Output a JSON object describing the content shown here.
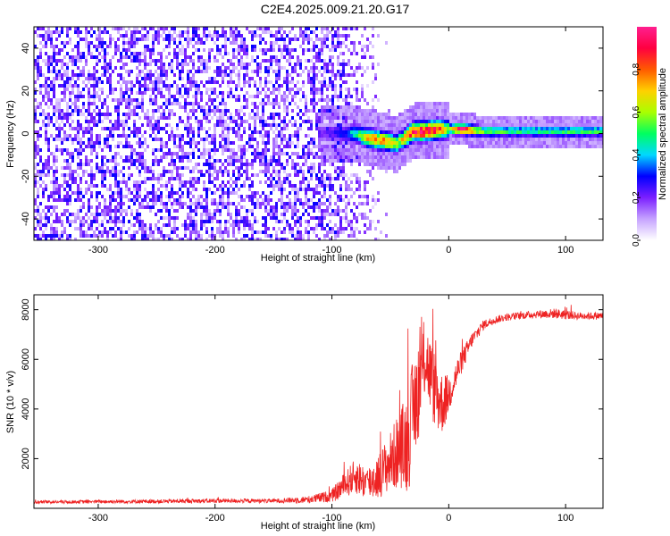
{
  "title": "C2E4.2025.009.21.20.G17",
  "chart_data": [
    {
      "type": "heatmap",
      "xlabel": "Height of straight line (km)",
      "ylabel": "Frequency (Hz)",
      "xlim": [
        -355,
        132
      ],
      "ylim": [
        -50,
        50
      ],
      "xticks": [
        "-300",
        "-200",
        "-100",
        "0",
        "100"
      ],
      "xtick_values": [
        -300,
        -200,
        -100,
        0,
        100
      ],
      "yticks": [
        "-40",
        "-20",
        "0",
        "20",
        "40"
      ],
      "ytick_values": [
        -40,
        -20,
        0,
        20,
        40
      ],
      "colorbar": {
        "label": "Normalized spectral amplitude",
        "range": [
          0,
          1
        ],
        "ticks": [
          "0.0",
          "0.2",
          "0.4",
          "0.6",
          "0.8"
        ],
        "tick_values": [
          0.0,
          0.2,
          0.4,
          0.6,
          0.8
        ],
        "colors": [
          "#ffffff",
          "#c6a3ff",
          "#7b1fff",
          "#0000ff",
          "#00d8ff",
          "#00ff60",
          "#aaff00",
          "#ffd000",
          "#ff5a00",
          "#ff0040",
          "#ff1f8f"
        ]
      },
      "noise_region": {
        "x": [
          -355,
          -95
        ],
        "level": 0.25
      },
      "ridge": {
        "x": [
          -110,
          -90,
          -80,
          -70,
          -60,
          -50,
          -45,
          -40,
          -30,
          -20,
          -10,
          0,
          10,
          30,
          60,
          100,
          132
        ],
        "freq": [
          0,
          0,
          0,
          -2,
          -3,
          -4,
          -5,
          -3,
          1,
          1,
          2,
          2,
          2,
          1,
          1,
          1,
          1
        ],
        "amplitude": [
          0.2,
          0.3,
          0.45,
          0.7,
          0.75,
          0.7,
          0.6,
          0.65,
          0.9,
          0.95,
          0.9,
          0.55,
          0.98,
          0.55,
          0.5,
          0.5,
          0.5
        ]
      },
      "grid": false,
      "legend": "colorbar right"
    },
    {
      "type": "line",
      "xlabel": "Height of straight line (km)",
      "ylabel": "SNR (10 * v/v)",
      "xlim": [
        -355,
        132
      ],
      "ylim": [
        0,
        8600
      ],
      "xticks": [
        "-300",
        "-200",
        "-100",
        "0",
        "100"
      ],
      "xtick_values": [
        -300,
        -200,
        -100,
        0,
        100
      ],
      "yticks": [
        "2000",
        "4000",
        "6000",
        "8000"
      ],
      "ytick_values": [
        2000,
        4000,
        6000,
        8000
      ],
      "color": "#ee2222",
      "series": [
        {
          "x": [
            -355,
            -300,
            -250,
            -200,
            -150,
            -120,
            -100,
            -90,
            -80,
            -70,
            -60,
            -50,
            -40,
            -35,
            -30,
            -25,
            -20,
            -15,
            -10,
            -5,
            0,
            10,
            20,
            30,
            40,
            50,
            70,
            90,
            100,
            110,
            132
          ],
          "y": [
            250,
            270,
            280,
            300,
            300,
            350,
            500,
            900,
            1300,
            1000,
            1300,
            1900,
            2500,
            2700,
            4000,
            5000,
            6200,
            5200,
            4500,
            4200,
            4600,
            5800,
            6800,
            7400,
            7600,
            7700,
            7800,
            7850,
            7800,
            7750,
            7750
          ],
          "spread": [
            60,
            70,
            80,
            90,
            80,
            150,
            250,
            500,
            700,
            700,
            900,
            1200,
            1700,
            2200,
            2200,
            2000,
            1600,
            1600,
            1500,
            1200,
            800,
            500,
            300,
            200,
            150,
            150,
            150,
            200,
            200,
            150,
            150
          ]
        }
      ],
      "grid": false
    }
  ]
}
